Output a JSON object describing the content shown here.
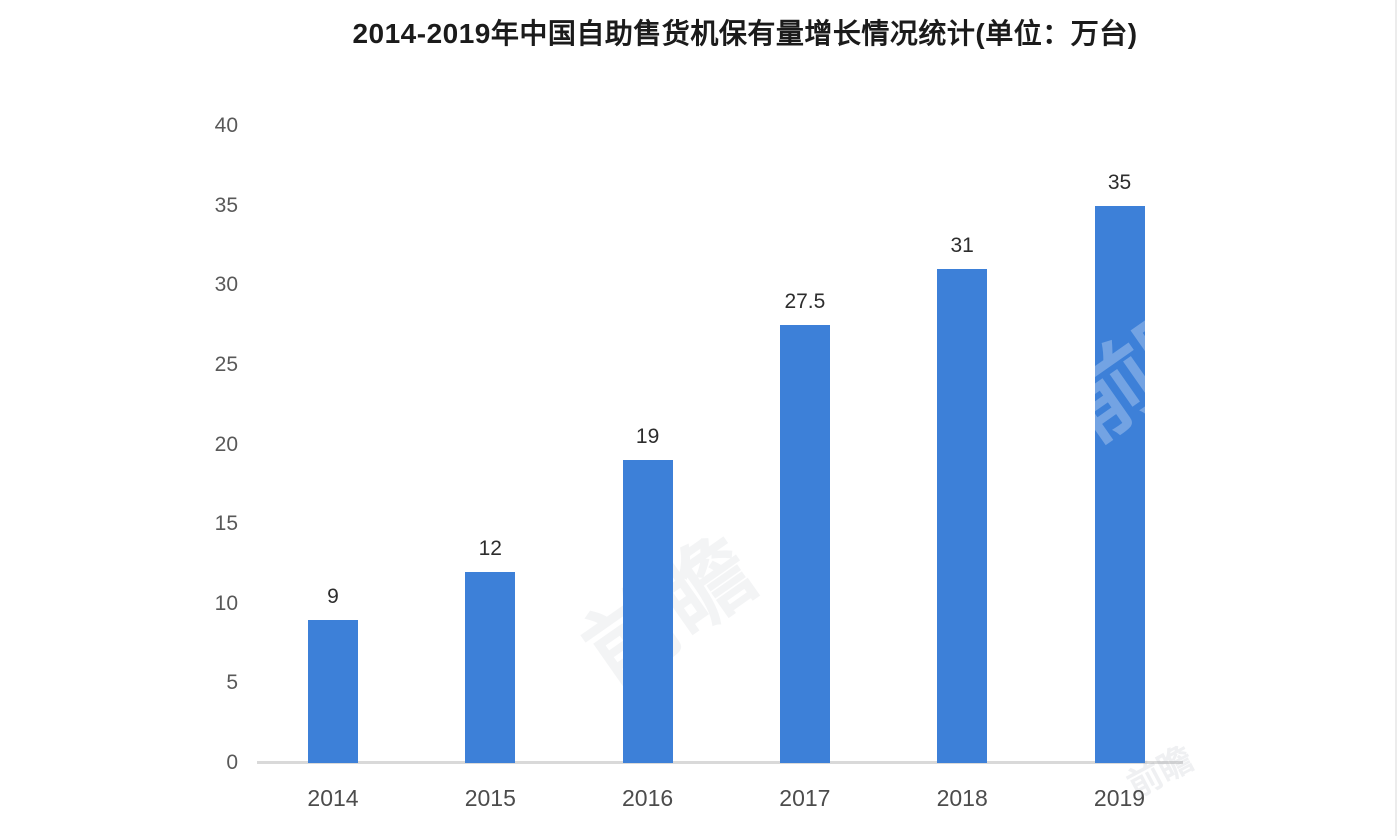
{
  "page": {
    "background": "#ffffff"
  },
  "title": "2014-2019年中国自助售货机保有量增长情况统计(单位：万台)",
  "watermark": {
    "text": "前瞻",
    "small_text": "前瞻"
  },
  "colors": {
    "bar": "#3d80d8",
    "title_text": "#1b1b1b",
    "axis_line": "#d9d9d9",
    "y_tick_text": "#595959",
    "x_tick_text": "#4c4c4c",
    "value_label_text": "#2d2d2d"
  },
  "chart_data": {
    "type": "bar",
    "title": "2014-2019年中国自助售货机保有量增长情况统计(单位：万台)",
    "categories": [
      "2014",
      "2015",
      "2016",
      "2017",
      "2018",
      "2019"
    ],
    "values": [
      9,
      12,
      19,
      27.5,
      31,
      35
    ],
    "value_labels": [
      "9",
      "12",
      "19",
      "27.5",
      "31",
      "35"
    ],
    "xlabel": "",
    "ylabel": "",
    "unit": "万台",
    "ylim": [
      0,
      40
    ],
    "yticks": [
      0,
      5,
      10,
      15,
      20,
      25,
      30,
      35,
      40
    ],
    "grid": false,
    "legend": "none",
    "bar_color": "#3d80d8"
  }
}
